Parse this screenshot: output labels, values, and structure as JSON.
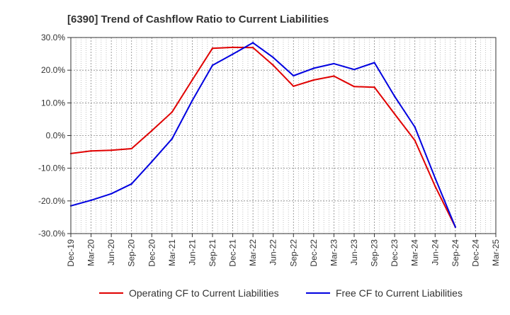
{
  "chart_data": {
    "type": "line",
    "title": "[6390]  Trend of Cashflow Ratio to Current Liabilities",
    "ylim": [
      -30,
      30
    ],
    "y_ticks": [
      30,
      20,
      10,
      0,
      -10,
      -20,
      -30
    ],
    "y_tick_labels": [
      "30.0%",
      "20.0%",
      "10.0%",
      "0.0%",
      "-10.0%",
      "-20.0%",
      "-30.0%"
    ],
    "categories": [
      "Dec-19",
      "Mar-20",
      "Jun-20",
      "Sep-20",
      "Dec-20",
      "Mar-21",
      "Jun-21",
      "Sep-21",
      "Dec-21",
      "Mar-22",
      "Jun-22",
      "Sep-22",
      "Dec-22",
      "Mar-23",
      "Jun-23",
      "Sep-23",
      "Dec-23",
      "Mar-24",
      "Jun-24",
      "Sep-24",
      "Dec-24",
      "Mar-25"
    ],
    "grid": true,
    "legend_position": "bottom",
    "series": [
      {
        "name": "Operating CF to Current Liabilities",
        "color": "#e00000",
        "values": [
          -5.5,
          -4.7,
          -4.5,
          -4.0,
          1.5,
          7.2,
          17.0,
          26.7,
          27.0,
          26.9,
          21.5,
          15.1,
          17.0,
          18.2,
          15.0,
          14.8,
          6.6,
          -1.5,
          -15.5,
          -28.0,
          null,
          null
        ]
      },
      {
        "name": "Free CF to Current Liabilities",
        "color": "#0000e0",
        "values": [
          -21.5,
          -19.8,
          -17.8,
          -14.8,
          -8.0,
          -1.0,
          10.7,
          21.5,
          24.9,
          28.4,
          23.9,
          18.3,
          20.6,
          22.0,
          20.2,
          22.3,
          12.0,
          2.6,
          -13.0,
          -28.0,
          null,
          null
        ]
      }
    ]
  }
}
